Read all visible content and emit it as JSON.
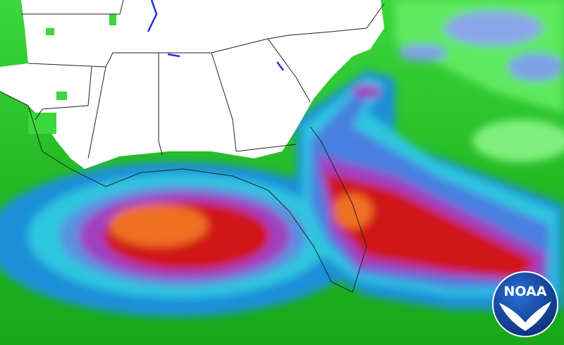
{
  "logo": {
    "text": "NOAA"
  }
}
